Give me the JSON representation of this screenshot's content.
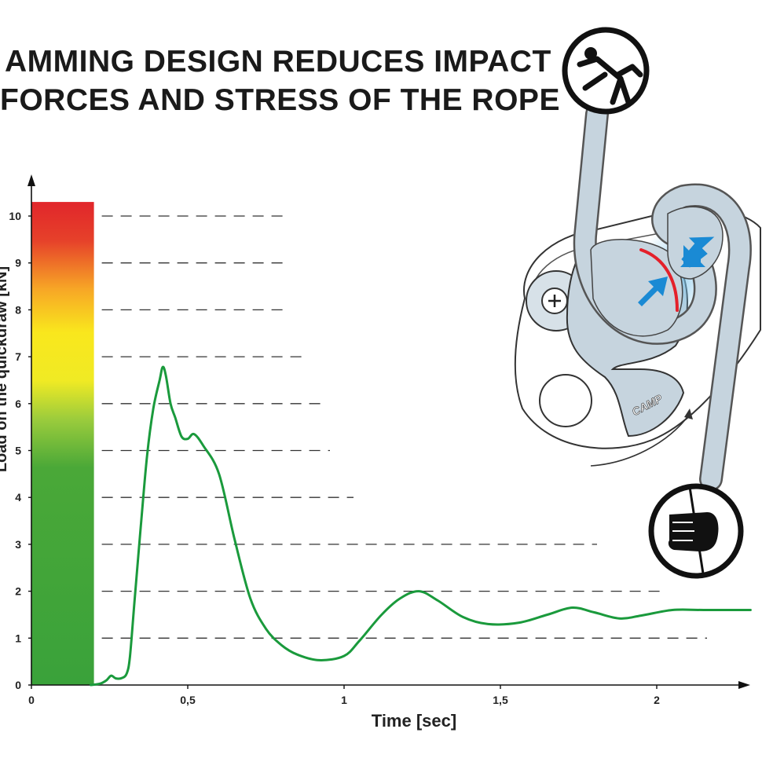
{
  "title": {
    "line1": "AMMING DESIGN REDUCES IMPACT",
    "line2": "FORCES AND STRESS OF THE ROPE"
  },
  "chart_data": {
    "type": "line",
    "xlabel": "Time [sec]",
    "ylabel": "Load on the quickdraw [kN]",
    "xlim": [
      0,
      2.3
    ],
    "ylim": [
      0,
      10
    ],
    "x_ticks": [
      "0",
      "0,5",
      "1",
      "1,5",
      "2"
    ],
    "x_tick_values": [
      0,
      0.5,
      1,
      1.5,
      2
    ],
    "y_ticks": [
      "0",
      "1",
      "2",
      "3",
      "4",
      "5",
      "6",
      "7",
      "8",
      "9",
      "10"
    ],
    "grid": "dashed horizontal lines",
    "series": [
      {
        "color": "#1a9a3c",
        "x": [
          0.19,
          0.22,
          0.24,
          0.255,
          0.27,
          0.29,
          0.305,
          0.315,
          0.33,
          0.35,
          0.37,
          0.39,
          0.41,
          0.42,
          0.43,
          0.445,
          0.46,
          0.48,
          0.5,
          0.52,
          0.55,
          0.6,
          0.65,
          0.7,
          0.75,
          0.8,
          0.85,
          0.92,
          1.0,
          1.05,
          1.12,
          1.18,
          1.24,
          1.3,
          1.38,
          1.46,
          1.56,
          1.65,
          1.73,
          1.8,
          1.88,
          1.95,
          2.05,
          2.15,
          2.3
        ],
        "y": [
          0,
          0.03,
          0.1,
          0.2,
          0.14,
          0.15,
          0.25,
          0.6,
          1.8,
          3.4,
          4.9,
          5.9,
          6.5,
          6.78,
          6.6,
          6.0,
          5.7,
          5.3,
          5.25,
          5.35,
          5.1,
          4.5,
          3.1,
          1.85,
          1.2,
          0.85,
          0.65,
          0.53,
          0.62,
          0.95,
          1.5,
          1.85,
          2.0,
          1.8,
          1.45,
          1.3,
          1.33,
          1.5,
          1.65,
          1.55,
          1.42,
          1.48,
          1.6,
          1.6,
          1.6
        ]
      }
    ],
    "risk_scale": {
      "colors": [
        "#2e9e3a",
        "#45a832",
        "#8dc63f",
        "#f4ec24",
        "#fbe21d",
        "#f9b233",
        "#e84e2a",
        "#e1272b"
      ],
      "max": 10.3
    }
  },
  "illustration": {
    "brand": "CAMP",
    "colors": {
      "device": "#c6d4de",
      "arrow": "#1a8ad4",
      "highlight": "#e4202a"
    },
    "icons": [
      "falling-climber-icon",
      "hand-grip-icon"
    ]
  }
}
